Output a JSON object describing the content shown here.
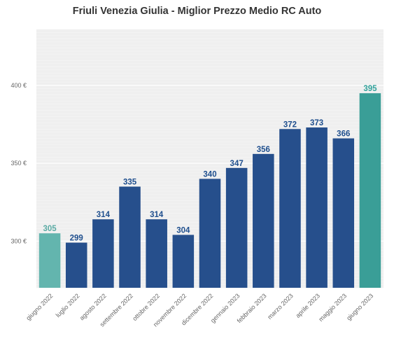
{
  "chart_data": {
    "type": "bar",
    "title": "Friuli Venezia Giulia - Miglior Prezzo Medio RC Auto",
    "xlabel": "",
    "ylabel": "",
    "categories": [
      "giugno 2022",
      "luglio 2022",
      "agosto 2022",
      "settembre 2022",
      "ottobre 2022",
      "novembre 2022",
      "dicembre 2022",
      "gennaio 2023",
      "febbraio 2023",
      "marzo 2023",
      "aprile 2023",
      "maggio 2023",
      "giugno 2023"
    ],
    "values": [
      305,
      299,
      314,
      335,
      314,
      304,
      340,
      347,
      356,
      372,
      373,
      366,
      395
    ],
    "ylim": [
      270,
      436
    ],
    "yticks": [
      300,
      350,
      400
    ],
    "ytick_labels": [
      "300 €",
      "350 €",
      "400 €"
    ],
    "grid": true,
    "legend": "none",
    "colors": {
      "background": "#efefef",
      "grid": "#ffffff",
      "bar_default": "#264f8c",
      "label_default": "#1f4f8e",
      "first_bar": "#63b5ae",
      "first_label": "#5aaba4",
      "last_bar": "#3a9e97",
      "last_label": "#32a39c"
    }
  }
}
